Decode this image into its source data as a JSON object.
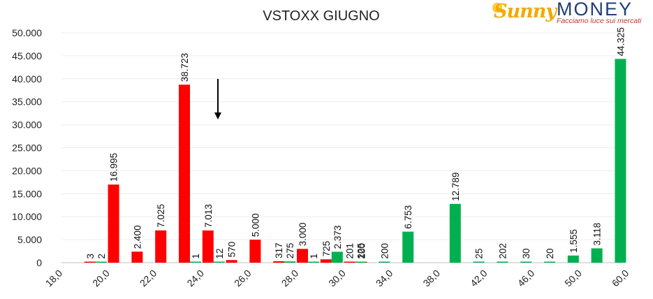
{
  "chart_data": {
    "type": "bar",
    "title": "VSTOXX GIUGNO",
    "ylim": [
      0,
      50000
    ],
    "yticks": [
      "0",
      "5.000",
      "10.000",
      "15.000",
      "20.000",
      "25.000",
      "30.000",
      "35.000",
      "40.000",
      "45.000",
      "50.000"
    ],
    "xticks": [
      "18,0",
      "20,0",
      "22,0",
      "24,0",
      "26,0",
      "28,0",
      "30,0",
      "34,0",
      "38,0",
      "42,0",
      "46,0",
      "50,0",
      "60,0"
    ],
    "series": [
      {
        "color": "#ff0000",
        "points": [
          {
            "slot": 1,
            "value": 3,
            "label": "3"
          },
          {
            "slot": 2,
            "value": 16995,
            "label": "16.995"
          },
          {
            "slot": 3,
            "value": 2400,
            "label": "2.400"
          },
          {
            "slot": 4,
            "value": 7025,
            "label": "7.025"
          },
          {
            "slot": 5,
            "value": 38723,
            "label": "38.723"
          },
          {
            "slot": 6,
            "value": 7013,
            "label": "7.013"
          },
          {
            "slot": 7,
            "value": 570,
            "label": "570"
          },
          {
            "slot": 8,
            "value": 5000,
            "label": "5.000"
          },
          {
            "slot": 9,
            "value": 317,
            "label": "317"
          },
          {
            "slot": 10,
            "value": 3000,
            "label": "3.000"
          },
          {
            "slot": 11,
            "value": 725,
            "label": "725"
          },
          {
            "slot": 12,
            "value": 201,
            "label": "201"
          },
          {
            "slot": 12.5,
            "value": 100,
            "label": "100"
          }
        ]
      },
      {
        "color": "#00b050",
        "points": [
          {
            "slot": 1,
            "value": 2,
            "label": "2"
          },
          {
            "slot": 5,
            "value": 1,
            "label": "1"
          },
          {
            "slot": 6,
            "value": 12,
            "label": "12"
          },
          {
            "slot": 9,
            "value": 275,
            "label": "275"
          },
          {
            "slot": 10,
            "value": 1,
            "label": "1"
          },
          {
            "slot": 11,
            "value": 2373,
            "label": "2.373"
          },
          {
            "slot": 12,
            "value": 225,
            "label": "225"
          },
          {
            "slot": 13,
            "value": 200,
            "label": "200"
          },
          {
            "slot": 14,
            "value": 6753,
            "label": "6.753"
          },
          {
            "slot": 16,
            "value": 12789,
            "label": "12.789"
          },
          {
            "slot": 17,
            "value": 25,
            "label": "25"
          },
          {
            "slot": 18,
            "value": 202,
            "label": "202"
          },
          {
            "slot": 19,
            "value": 30,
            "label": "30"
          },
          {
            "slot": 20,
            "value": 20,
            "label": "20"
          },
          {
            "slot": 21,
            "value": 1555,
            "label": "1.555"
          },
          {
            "slot": 22,
            "value": 3118,
            "label": "3.118"
          },
          {
            "slot": 23,
            "value": 44325,
            "label": "44.325"
          }
        ]
      }
    ]
  },
  "logo": {
    "brand_sunny": "Sunny",
    "brand_money": "MONEY",
    "tagline": "Facciamo luce sui mercati"
  },
  "annotation": {
    "arrow_icon": "down-arrow-icon"
  }
}
